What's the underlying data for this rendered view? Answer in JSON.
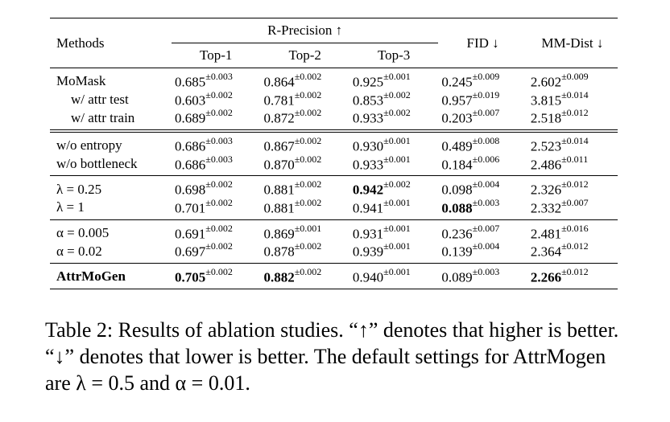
{
  "header": {
    "methods": "Methods",
    "r_precision": "R-Precision ↑",
    "top1": "Top-1",
    "top2": "Top-2",
    "top3": "Top-3",
    "fid": "FID ↓",
    "mmdist": "MM-Dist ↓"
  },
  "groups": [
    {
      "rows": [
        {
          "method": "MoMask",
          "cells": [
            {
              "v": "0.685",
              "pm": "±0.003"
            },
            {
              "v": "0.864",
              "pm": "±0.002"
            },
            {
              "v": "0.925",
              "pm": "±0.001"
            },
            {
              "v": "0.245",
              "pm": "±0.009"
            },
            {
              "v": "2.602",
              "pm": "±0.009"
            }
          ]
        },
        {
          "method": "w/ attr test",
          "indent": true,
          "cells": [
            {
              "v": "0.603",
              "pm": "±0.002"
            },
            {
              "v": "0.781",
              "pm": "±0.002"
            },
            {
              "v": "0.853",
              "pm": "±0.002"
            },
            {
              "v": "0.957",
              "pm": "±0.019"
            },
            {
              "v": "3.815",
              "pm": "±0.014"
            }
          ]
        },
        {
          "method": "w/ attr train",
          "indent": true,
          "cells": [
            {
              "v": "0.689",
              "pm": "±0.002"
            },
            {
              "v": "0.872",
              "pm": "±0.002"
            },
            {
              "v": "0.933",
              "pm": "±0.002"
            },
            {
              "v": "0.203",
              "pm": "±0.007"
            },
            {
              "v": "2.518",
              "pm": "±0.012"
            }
          ]
        }
      ]
    },
    {
      "rows": [
        {
          "method": "w/o entropy",
          "cells": [
            {
              "v": "0.686",
              "pm": "±0.003"
            },
            {
              "v": "0.867",
              "pm": "±0.002"
            },
            {
              "v": "0.930",
              "pm": "±0.001"
            },
            {
              "v": "0.489",
              "pm": "±0.008"
            },
            {
              "v": "2.523",
              "pm": "±0.014"
            }
          ]
        },
        {
          "method": "w/o bottleneck",
          "cells": [
            {
              "v": "0.686",
              "pm": "±0.003"
            },
            {
              "v": "0.870",
              "pm": "±0.002"
            },
            {
              "v": "0.933",
              "pm": "±0.001"
            },
            {
              "v": "0.184",
              "pm": "±0.006"
            },
            {
              "v": "2.486",
              "pm": "±0.011"
            }
          ]
        }
      ]
    },
    {
      "rows": [
        {
          "method": "λ = 0.25",
          "cells": [
            {
              "v": "0.698",
              "pm": "±0.002"
            },
            {
              "v": "0.881",
              "pm": "±0.002"
            },
            {
              "v": "0.942",
              "pm": "±0.002",
              "bold": true
            },
            {
              "v": "0.098",
              "pm": "±0.004"
            },
            {
              "v": "2.326",
              "pm": "±0.012"
            }
          ]
        },
        {
          "method": "λ = 1",
          "cells": [
            {
              "v": "0.701",
              "pm": "±0.002"
            },
            {
              "v": "0.881",
              "pm": "±0.002"
            },
            {
              "v": "0.941",
              "pm": "±0.001"
            },
            {
              "v": "0.088",
              "pm": "±0.003",
              "bold": true
            },
            {
              "v": "2.332",
              "pm": "±0.007"
            }
          ]
        }
      ]
    },
    {
      "rows": [
        {
          "method": "α = 0.005",
          "cells": [
            {
              "v": "0.691",
              "pm": "±0.002"
            },
            {
              "v": "0.869",
              "pm": "±0.001"
            },
            {
              "v": "0.931",
              "pm": "±0.001"
            },
            {
              "v": "0.236",
              "pm": "±0.007"
            },
            {
              "v": "2.481",
              "pm": "±0.016"
            }
          ]
        },
        {
          "method": "α = 0.02",
          "cells": [
            {
              "v": "0.697",
              "pm": "±0.002"
            },
            {
              "v": "0.878",
              "pm": "±0.002"
            },
            {
              "v": "0.939",
              "pm": "±0.001"
            },
            {
              "v": "0.139",
              "pm": "±0.004"
            },
            {
              "v": "2.364",
              "pm": "±0.012"
            }
          ]
        }
      ]
    },
    {
      "rows": [
        {
          "method": "AttrMoGen",
          "bold": true,
          "cells": [
            {
              "v": "0.705",
              "pm": "±0.002",
              "bold": true
            },
            {
              "v": "0.882",
              "pm": "±0.002",
              "bold": true
            },
            {
              "v": "0.940",
              "pm": "±0.001"
            },
            {
              "v": "0.089",
              "pm": "±0.003"
            },
            {
              "v": "2.266",
              "pm": "±0.012",
              "bold": true
            }
          ]
        }
      ]
    }
  ],
  "caption": "Table 2: Results of ablation studies. “↑” denotes that higher is better. “↓” denotes that lower is better. The default settings for AttrMogen are λ = 0.5 and α = 0.01."
}
